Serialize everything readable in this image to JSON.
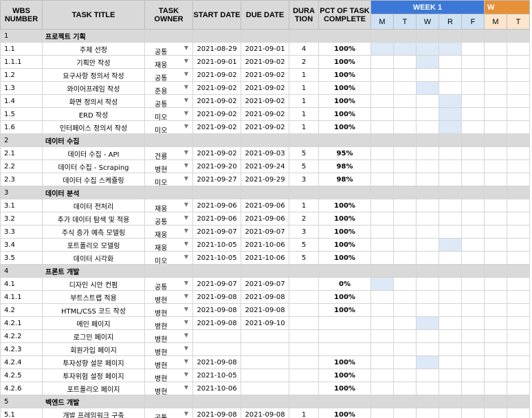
{
  "headers": {
    "wbs": "WBS NUMBER",
    "title": "TASK TITLE",
    "owner": "TASK OWNER",
    "start": "START DATE",
    "due": "DUE DATE",
    "duration": "DURA TION",
    "pct": "PCT OF TASK COMPLETE"
  },
  "weeks": [
    {
      "label": "WEEK 1",
      "color": "#3c78d8",
      "days": [
        "M",
        "T",
        "W",
        "R",
        "F"
      ]
    },
    {
      "label": "W",
      "color": "#e69138",
      "days": [
        "M",
        "T"
      ]
    }
  ],
  "colors": {
    "gantt_fill": "#dde9f7",
    "header_bg": "#d9d9d9",
    "week2_day_bg": "#fce5cd"
  },
  "rows": [
    {
      "wbs": "1",
      "section": true,
      "title": "프로젝트 기획"
    },
    {
      "wbs": "1.1",
      "title": "주제 선정",
      "owner": "공통",
      "start": "2021-08-29",
      "due": "2021-09-01",
      "dur": "4",
      "pct": "100%",
      "gantt": [
        1,
        1,
        1,
        1,
        0,
        0,
        0
      ]
    },
    {
      "wbs": "1.1.1",
      "title": "기획안 작성",
      "owner": "재웅",
      "start": "2021-09-01",
      "due": "2021-09-02",
      "dur": "2",
      "pct": "100%",
      "gantt": [
        0,
        0,
        1,
        0,
        0,
        0,
        0
      ]
    },
    {
      "wbs": "1.2",
      "title": "요구사항 정의서 작성",
      "owner": "공통",
      "start": "2021-09-02",
      "due": "2021-09-02",
      "dur": "1",
      "pct": "100%",
      "gantt": [
        0,
        0,
        0,
        0,
        0,
        0,
        0
      ]
    },
    {
      "wbs": "1.3",
      "title": "와이어프레임 작성",
      "owner": "준용",
      "start": "2021-09-02",
      "due": "2021-09-02",
      "dur": "1",
      "pct": "100%",
      "gantt": [
        0,
        0,
        1,
        0,
        0,
        0,
        0
      ]
    },
    {
      "wbs": "1.4",
      "title": "화면 정의서 작성",
      "owner": "공통",
      "start": "2021-09-02",
      "due": "2021-09-02",
      "dur": "1",
      "pct": "100%",
      "gantt": [
        0,
        0,
        0,
        1,
        0,
        0,
        0
      ]
    },
    {
      "wbs": "1.5",
      "title": "ERD 작성",
      "owner": "미오",
      "start": "2021-09-02",
      "due": "2021-09-02",
      "dur": "1",
      "pct": "100%",
      "gantt": [
        0,
        0,
        0,
        1,
        0,
        0,
        0
      ]
    },
    {
      "wbs": "1.6",
      "title": "인터페이스 정의서 작성",
      "owner": "미오",
      "start": "2021-09-02",
      "due": "2021-09-02",
      "dur": "1",
      "pct": "100%",
      "gantt": [
        0,
        0,
        0,
        1,
        0,
        0,
        0
      ]
    },
    {
      "wbs": "2",
      "section": true,
      "title": "데이터 수집"
    },
    {
      "wbs": "2.1",
      "title": "데이터 수집 - API",
      "owner": "건룡",
      "start": "2021-09-02",
      "due": "2021-09-03",
      "dur": "5",
      "pct": "95%",
      "gantt": [
        0,
        0,
        0,
        0,
        0,
        0,
        0
      ]
    },
    {
      "wbs": "2.2",
      "title": "데이터 수집 - Scraping",
      "owner": "병현",
      "start": "2021-09-20",
      "due": "2021-09-24",
      "dur": "5",
      "pct": "98%",
      "gantt": [
        0,
        0,
        0,
        0,
        0,
        0,
        0
      ]
    },
    {
      "wbs": "2.3",
      "title": "데이터 수집 스케쥴링",
      "owner": "미오",
      "start": "2021-09-27",
      "due": "2021-09-29",
      "dur": "3",
      "pct": "98%",
      "gantt": [
        0,
        0,
        0,
        0,
        0,
        0,
        0
      ]
    },
    {
      "wbs": "3",
      "section": true,
      "title": "데이터 분석"
    },
    {
      "wbs": "3.1",
      "title": "데이터 전처리",
      "owner": "재웅",
      "start": "2021-09-06",
      "due": "2021-09-06",
      "dur": "1",
      "pct": "100%",
      "gantt": [
        0,
        0,
        0,
        0,
        0,
        0,
        0
      ]
    },
    {
      "wbs": "3.2",
      "title": "추가 데이터 탐색 및 적용",
      "owner": "공통",
      "start": "2021-09-06",
      "due": "2021-09-06",
      "dur": "2",
      "pct": "100%",
      "gantt": [
        0,
        0,
        0,
        0,
        0,
        0,
        0
      ]
    },
    {
      "wbs": "3.3",
      "title": "주식 증가 예측 모델링",
      "owner": "재웅",
      "start": "2021-09-07",
      "due": "2021-09-07",
      "dur": "3",
      "pct": "100%",
      "gantt": [
        0,
        0,
        0,
        0,
        0,
        0,
        0
      ]
    },
    {
      "wbs": "3.4",
      "title": "포트폴리오 모델링",
      "owner": "재웅",
      "start": "2021-10-05",
      "due": "2021-10-06",
      "dur": "5",
      "pct": "100%",
      "gantt": [
        0,
        0,
        0,
        1,
        0,
        0,
        0
      ]
    },
    {
      "wbs": "3.5",
      "title": "데이터 시각화",
      "owner": "미오",
      "start": "2021-10-05",
      "due": "2021-10-06",
      "dur": "5",
      "pct": "100%",
      "gantt": [
        0,
        0,
        0,
        0,
        0,
        0,
        0
      ]
    },
    {
      "wbs": "4",
      "section": true,
      "title": "프론트 개발"
    },
    {
      "wbs": "4.1",
      "title": "디자인 시안 컨펌",
      "owner": "공통",
      "start": "2021-09-07",
      "due": "2021-09-07",
      "dur": "",
      "pct": "0%",
      "gantt": [
        1,
        0,
        0,
        0,
        0,
        0,
        0
      ]
    },
    {
      "wbs": "4.1.1",
      "title": "부트스트랩 적용",
      "owner": "병현",
      "start": "2021-09-08",
      "due": "2021-09-08",
      "dur": "",
      "pct": "100%",
      "gantt": [
        0,
        0,
        0,
        0,
        0,
        0,
        0
      ]
    },
    {
      "wbs": "4.2",
      "title": "HTML/CSS 코드 작성",
      "owner": "병현",
      "start": "2021-09-08",
      "due": "2021-09-08",
      "dur": "",
      "pct": "100%",
      "gantt": [
        0,
        0,
        0,
        0,
        0,
        0,
        0
      ]
    },
    {
      "wbs": "4.2.1",
      "title": "메인 페이지",
      "owner": "병현",
      "start": "2021-09-08",
      "due": "2021-09-10",
      "dur": "",
      "pct": "",
      "gantt": [
        0,
        0,
        1,
        0,
        0,
        0,
        0
      ]
    },
    {
      "wbs": "4.2.2",
      "title": "로그인 페이지",
      "owner": "병현",
      "start": "",
      "due": "",
      "dur": "",
      "pct": "",
      "gantt": [
        0,
        0,
        0,
        0,
        0,
        0,
        0
      ]
    },
    {
      "wbs": "4.2.3",
      "title": "회원가입 페이지",
      "owner": "병현",
      "start": "",
      "due": "",
      "dur": "",
      "pct": "",
      "gantt": [
        0,
        0,
        0,
        0,
        0,
        0,
        0
      ]
    },
    {
      "wbs": "4.2.4",
      "title": "투자성향 설문 페이지",
      "owner": "병현",
      "start": "2021-09-08",
      "due": "",
      "dur": "",
      "pct": "100%",
      "gantt": [
        0,
        0,
        1,
        0,
        0,
        0,
        0
      ]
    },
    {
      "wbs": "4.2.5",
      "title": "투자위험 설정 페이지",
      "owner": "병현",
      "start": "2021-10-05",
      "due": "",
      "dur": "",
      "pct": "100%",
      "gantt": [
        0,
        0,
        0,
        0,
        0,
        0,
        0
      ]
    },
    {
      "wbs": "4.2.6",
      "title": "포트폴리오 페이지",
      "owner": "병현",
      "start": "2021-10-06",
      "due": "",
      "dur": "",
      "pct": "100%",
      "gantt": [
        0,
        0,
        0,
        0,
        0,
        0,
        0
      ]
    },
    {
      "wbs": "5",
      "section": true,
      "title": "벡엔드 개발"
    },
    {
      "wbs": "5.1",
      "title": "개발 프레임워크 구축",
      "owner": "공통",
      "start": "2021-09-08",
      "due": "2021-09-08",
      "dur": "1",
      "pct": "100%",
      "gantt": [
        0,
        0,
        0,
        0,
        0,
        0,
        0
      ]
    }
  ]
}
